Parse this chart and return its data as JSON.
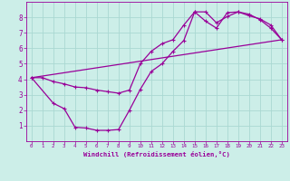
{
  "bg_color": "#cceee8",
  "grid_color": "#aad8d2",
  "line_color": "#990099",
  "xlabel": "Windchill (Refroidissement éolien,°C)",
  "xlim": [
    -0.5,
    23.5
  ],
  "ylim": [
    0,
    9
  ],
  "xticks": [
    0,
    1,
    2,
    3,
    4,
    5,
    6,
    7,
    8,
    9,
    10,
    11,
    12,
    13,
    14,
    15,
    16,
    17,
    18,
    19,
    20,
    21,
    22,
    23
  ],
  "yticks": [
    1,
    2,
    3,
    4,
    5,
    6,
    7,
    8
  ],
  "line1_x": [
    0,
    1,
    2,
    3,
    4,
    5,
    6,
    7,
    8,
    9,
    10,
    11,
    12,
    13,
    14,
    15,
    16,
    17,
    18,
    19,
    20,
    21,
    22,
    23
  ],
  "line1_y": [
    4.1,
    4.1,
    3.85,
    3.7,
    3.5,
    3.45,
    3.3,
    3.2,
    3.1,
    3.3,
    5.0,
    5.8,
    6.3,
    6.55,
    7.5,
    8.35,
    8.35,
    7.65,
    8.05,
    8.35,
    8.2,
    7.85,
    7.3,
    6.55
  ],
  "line2_x": [
    0,
    2,
    3,
    4,
    5,
    6,
    7,
    8,
    9,
    10,
    11,
    12,
    13,
    14,
    15,
    16,
    17,
    18,
    19,
    20,
    21,
    22,
    23
  ],
  "line2_y": [
    4.1,
    2.45,
    2.1,
    0.9,
    0.85,
    0.7,
    0.7,
    0.75,
    2.0,
    3.35,
    4.5,
    5.0,
    5.8,
    6.5,
    8.35,
    7.75,
    7.3,
    8.3,
    8.35,
    8.1,
    7.9,
    7.5,
    6.55
  ],
  "line3_x": [
    0,
    23
  ],
  "line3_y": [
    4.1,
    6.55
  ],
  "marker": "+",
  "markersize": 3,
  "linewidth": 0.9
}
